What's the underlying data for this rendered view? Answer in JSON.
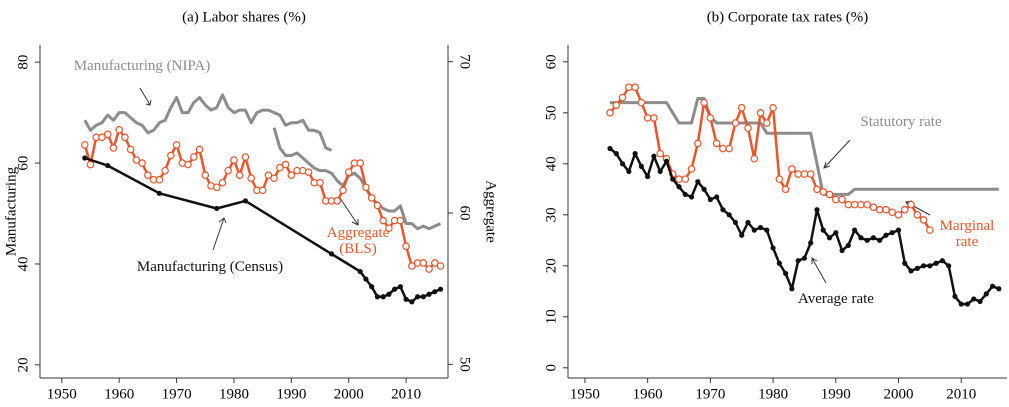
{
  "chart_data": [
    {
      "type": "line",
      "title": "(a) Labor shares (%)",
      "ylabel": "Manufacturing",
      "y2label": "Aggregate",
      "xlim": [
        1946.2,
        2017.3
      ],
      "xticks": [
        1950,
        1960,
        1970,
        1980,
        1990,
        2000,
        2010
      ],
      "ylim": [
        17.4,
        83.4
      ],
      "yticks": [
        20,
        40,
        60,
        80
      ],
      "y2lim": [
        49.1,
        71.1
      ],
      "y2ticks": [
        50,
        60,
        70
      ],
      "grid": false,
      "series": [
        {
          "name": "Manufacturing (NIPA)",
          "color": "#8c8c8c",
          "marker": "none",
          "x": [
            1954,
            1955,
            1956,
            1957,
            1958,
            1959,
            1960,
            1961,
            1962,
            1963,
            1964,
            1965,
            1966,
            1967,
            1968,
            1969,
            1970,
            1971,
            1972,
            1973,
            1974,
            1975,
            1976,
            1977,
            1978,
            1979,
            1980,
            1981,
            1982,
            1983,
            1984,
            1985,
            1986,
            1987,
            1988,
            1989,
            1990,
            1991,
            1992,
            1993,
            1994,
            1995,
            1996,
            1997,
            null,
            1987,
            1988,
            1989,
            1990,
            1991,
            1992,
            1993,
            1994,
            1995,
            1996,
            1997,
            1998,
            1999,
            2000,
            2001,
            2002,
            2003,
            2004,
            2005,
            2006,
            2007,
            2008,
            2009,
            2010,
            2011,
            2012,
            2013,
            2014,
            2015,
            2016
          ],
          "values": [
            68.5,
            66.5,
            67.5,
            68,
            69.5,
            68.5,
            70,
            70,
            69,
            68,
            67.5,
            66,
            66.5,
            68,
            68.5,
            71,
            73,
            70,
            70,
            72,
            73,
            71.5,
            70.5,
            71,
            73.5,
            71,
            70,
            70.5,
            70.5,
            68,
            70,
            70.5,
            70.5,
            70,
            69.5,
            67.5,
            68,
            68,
            68.5,
            66.5,
            66.5,
            66,
            63,
            62.5,
            null,
            67,
            63,
            61.5,
            61.5,
            62,
            61,
            60,
            59,
            58.5,
            58.5,
            58,
            56.5,
            55.5,
            57.5,
            58,
            57,
            55,
            53,
            52,
            51,
            50.5,
            50.5,
            51.5,
            48,
            48,
            47,
            47.5,
            47,
            47.5,
            48
          ]
        },
        {
          "name": "Aggregate (BLS)",
          "color": "#e8562a",
          "marker": "hollow",
          "axis": "y2",
          "x": [
            1954,
            1955,
            1956,
            1957,
            1958,
            1959,
            1960,
            1961,
            1962,
            1963,
            1964,
            1965,
            1966,
            1967,
            1968,
            1969,
            1970,
            1971,
            1972,
            1973,
            1974,
            1975,
            1976,
            1977,
            1978,
            1979,
            1980,
            1981,
            1982,
            1983,
            1984,
            1985,
            1986,
            1987,
            1988,
            1989,
            1990,
            1991,
            1992,
            1993,
            1994,
            1995,
            1996,
            1997,
            1998,
            1999,
            2000,
            2001,
            2002,
            2003,
            2004,
            2005,
            2006,
            2007,
            2008,
            2009,
            2010,
            2011,
            2012,
            2013,
            2014,
            2015,
            2016
          ],
          "values": [
            64.5,
            63.2,
            65,
            65,
            65.2,
            64.3,
            65.5,
            65,
            64.2,
            63.5,
            63.3,
            62.5,
            62.2,
            62.2,
            62.8,
            63.8,
            64.5,
            63.3,
            63.2,
            63.7,
            64.2,
            62.5,
            61.8,
            61.7,
            62,
            62.8,
            63.5,
            62.5,
            63.7,
            62.3,
            61.5,
            61.5,
            62.5,
            62.3,
            63,
            63.2,
            62.5,
            62.8,
            62.8,
            62.7,
            62,
            62,
            60.8,
            60.8,
            60.8,
            61.5,
            62.7,
            63.3,
            63.3,
            61.7,
            61,
            60.5,
            59.5,
            59,
            59.5,
            59.5,
            57.8,
            56.5,
            56.7,
            56.7,
            56.3,
            56.7,
            56.5
          ]
        },
        {
          "name": "Manufacturing (Census)",
          "color": "#111111",
          "marker": "dot",
          "x": [
            1954,
            1958,
            1967,
            1977,
            1982,
            1997,
            2002,
            2003,
            2004,
            2005,
            2006,
            2007,
            2008,
            2009,
            2010,
            2011,
            2012,
            2013,
            2014,
            2015,
            2016
          ],
          "values": [
            61,
            59.5,
            54,
            51,
            52.5,
            42,
            38.5,
            37,
            35.5,
            33.5,
            33.5,
            34,
            35,
            35.5,
            33,
            32.5,
            33.5,
            33.5,
            34,
            34.5,
            35
          ]
        }
      ]
    },
    {
      "type": "line",
      "title": "(b) Corporate tax rates (%)",
      "xlim": [
        1947.3,
        2017.3
      ],
      "xticks": [
        1950,
        1960,
        1970,
        1980,
        1990,
        2000,
        2010
      ],
      "ylim": [
        -2,
        63.3
      ],
      "yticks": [
        0,
        10,
        20,
        30,
        40,
        50,
        60
      ],
      "grid": false,
      "series": [
        {
          "name": "Statutory rate",
          "color": "#8c8c8c",
          "marker": "none",
          "x": [
            1954,
            1955,
            1956,
            1957,
            1958,
            1959,
            1960,
            1961,
            1962,
            1963,
            1964,
            1965,
            1966,
            1967,
            1968,
            1969,
            1970,
            1971,
            1972,
            1973,
            1974,
            1975,
            1976,
            1977,
            1978,
            1979,
            1980,
            1981,
            1982,
            1983,
            1984,
            1985,
            1986,
            1987,
            1988,
            1989,
            1990,
            1991,
            1992,
            1993,
            1994,
            1995,
            1996,
            1997,
            1998,
            1999,
            2000,
            2001,
            2002,
            2003,
            2004,
            2005,
            2006,
            2007,
            2008,
            2009,
            2010,
            2011,
            2012,
            2013,
            2014,
            2015,
            2016
          ],
          "values": [
            52,
            52,
            52,
            52,
            52,
            52,
            52,
            52,
            52,
            52,
            50,
            48,
            48,
            48,
            52.8,
            52.8,
            49.2,
            48,
            48,
            48,
            48,
            48,
            48,
            48,
            48,
            46,
            46,
            46,
            46,
            46,
            46,
            46,
            46,
            40,
            34,
            34,
            34,
            34,
            34,
            35,
            35,
            35,
            35,
            35,
            35,
            35,
            35,
            35,
            35,
            35,
            35,
            35,
            35,
            35,
            35,
            35,
            35,
            35,
            35,
            35,
            35,
            35,
            35
          ]
        },
        {
          "name": "Marginal rate",
          "color": "#e8562a",
          "marker": "hollow",
          "x": [
            1954,
            1955,
            1956,
            1957,
            1958,
            1959,
            1960,
            1961,
            1962,
            1963,
            1964,
            1965,
            1966,
            1967,
            1968,
            1969,
            1970,
            1971,
            1972,
            1973,
            1974,
            1975,
            1976,
            1977,
            1978,
            1979,
            1980,
            1981,
            1982,
            1983,
            1984,
            1985,
            1986,
            1987,
            1988,
            1989,
            1990,
            1991,
            1992,
            1993,
            1994,
            1995,
            1996,
            1997,
            1998,
            1999,
            2000,
            2001,
            2002,
            2003,
            2004,
            2005
          ],
          "values": [
            50,
            51.5,
            53,
            55,
            55,
            52,
            49,
            49,
            42,
            41,
            38,
            37,
            37,
            39,
            44,
            52,
            49,
            44,
            43,
            43,
            48,
            51,
            47,
            41,
            50,
            48,
            51,
            37,
            35,
            39,
            38,
            38,
            38,
            35,
            34.5,
            34,
            33,
            33,
            32,
            32,
            32,
            32,
            31.5,
            31,
            31,
            30.5,
            30,
            31,
            32,
            30,
            29,
            27
          ]
        },
        {
          "name": "Average rate",
          "color": "#111111",
          "marker": "dot",
          "x": [
            1954,
            1955,
            1956,
            1957,
            1958,
            1959,
            1960,
            1961,
            1962,
            1963,
            1964,
            1965,
            1966,
            1967,
            1968,
            1969,
            1970,
            1971,
            1972,
            1973,
            1974,
            1975,
            1976,
            1977,
            1978,
            1979,
            1980,
            1981,
            1982,
            1983,
            1984,
            1985,
            1986,
            1987,
            1988,
            1989,
            1990,
            1991,
            1992,
            1993,
            1994,
            1995,
            1996,
            1997,
            1998,
            1999,
            2000,
            2001,
            2002,
            2003,
            2004,
            2005,
            2006,
            2007,
            2008,
            2009,
            2010,
            2011,
            2012,
            2013,
            2014,
            2015,
            2016
          ],
          "values": [
            43,
            42,
            40,
            38.5,
            42,
            39.5,
            37.5,
            41.5,
            38.5,
            40.5,
            37,
            35.5,
            34,
            33.5,
            36.5,
            35,
            33,
            33.5,
            31,
            30,
            28.5,
            26,
            28.5,
            27,
            27.5,
            27,
            23.5,
            20.5,
            18.5,
            15.5,
            21,
            21.5,
            24.5,
            31,
            27,
            25.5,
            26.5,
            23,
            24,
            27,
            25.5,
            25,
            25.5,
            25,
            26,
            26.5,
            27,
            20.5,
            19,
            19.5,
            20,
            20,
            20.5,
            21,
            20,
            14,
            12.5,
            12.5,
            13.5,
            13,
            14.5,
            16,
            15.5
          ]
        }
      ]
    }
  ]
}
